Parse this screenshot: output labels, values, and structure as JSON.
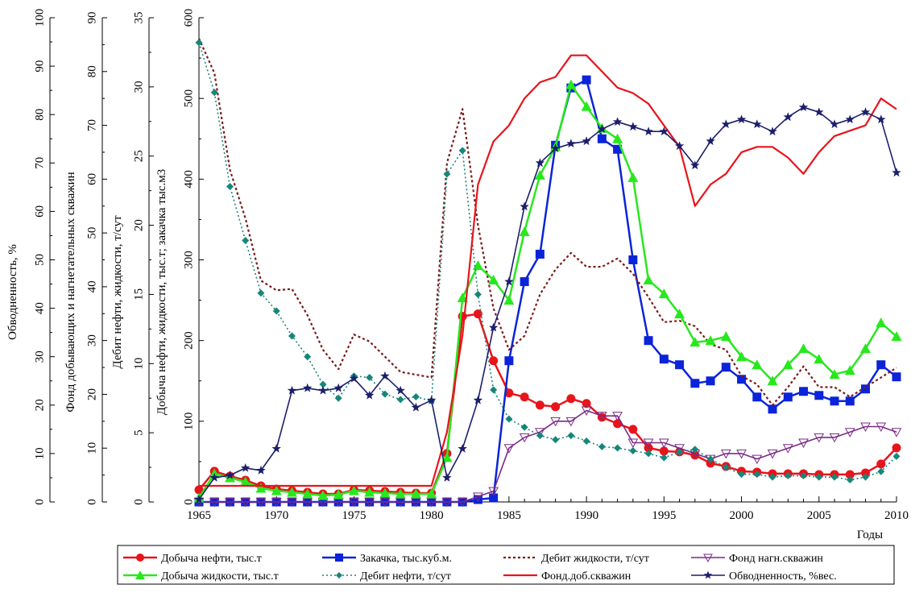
{
  "chart_data": {
    "type": "line",
    "xlabel": "Годы",
    "x_ticks": [
      "1965",
      "1970",
      "1975",
      "1980",
      "1985",
      "1990",
      "1995",
      "2000",
      "2005",
      "2010"
    ],
    "xlim": [
      1965,
      2010
    ],
    "axes": [
      {
        "id": "wc",
        "label": "Обводненность, %",
        "ylim": [
          0,
          100
        ],
        "ticks": [
          "0",
          "10",
          "20",
          "30",
          "40",
          "50",
          "60",
          "70",
          "80",
          "90",
          "100"
        ]
      },
      {
        "id": "wells",
        "label": "Фонд добывающих и нагнетательных скважин",
        "ylim": [
          0,
          90
        ],
        "ticks": [
          "0",
          "10",
          "20",
          "30",
          "40",
          "50",
          "60",
          "70",
          "80",
          "90"
        ]
      },
      {
        "id": "rate",
        "label": "Дебит нефти, жидкости, т/сут",
        "ylim": [
          0,
          35
        ],
        "ticks": [
          "0",
          "5",
          "10",
          "15",
          "20",
          "25",
          "30",
          "35"
        ]
      },
      {
        "id": "prod",
        "label": "Добыча нефти, жидкости, тыс.т; закачка тыс.м3",
        "ylim": [
          0,
          600
        ],
        "ticks": [
          "0",
          "100",
          "200",
          "300",
          "400",
          "500",
          "600"
        ]
      }
    ],
    "series": [
      {
        "name": "Добыча нефти, тыс.т",
        "axis": "prod",
        "color": "#e8141b",
        "width": 2.5,
        "dash": "",
        "marker": "circle",
        "x": [
          1965,
          1966,
          1967,
          1968,
          1969,
          1970,
          1971,
          1972,
          1973,
          1974,
          1975,
          1976,
          1977,
          1978,
          1979,
          1980,
          1981,
          1982,
          1983,
          1984,
          1985,
          1986,
          1987,
          1988,
          1989,
          1990,
          1991,
          1992,
          1993,
          1994,
          1995,
          1996,
          1997,
          1998,
          1999,
          2000,
          2001,
          2002,
          2003,
          2004,
          2005,
          2006,
          2007,
          2008,
          2009,
          2010
        ],
        "y": [
          15,
          38,
          32,
          27,
          20,
          16,
          14,
          12,
          10,
          10,
          15,
          14,
          13,
          12,
          11,
          11,
          60,
          230,
          233,
          175,
          135,
          130,
          120,
          118,
          128,
          122,
          105,
          97,
          90,
          67,
          63,
          62,
          58,
          48,
          44,
          38,
          37,
          35,
          35,
          35,
          34,
          34,
          34,
          36,
          47,
          67
        ]
      },
      {
        "name": "Закачка, тыс.куб.м.",
        "axis": "prod",
        "color": "#0b24d9",
        "width": 2.5,
        "dash": "",
        "marker": "square",
        "x": [
          1965,
          1966,
          1967,
          1968,
          1969,
          1970,
          1971,
          1972,
          1973,
          1974,
          1975,
          1976,
          1977,
          1978,
          1979,
          1980,
          1981,
          1982,
          1983,
          1984,
          1985,
          1986,
          1987,
          1988,
          1989,
          1990,
          1991,
          1992,
          1993,
          1994,
          1995,
          1996,
          1997,
          1998,
          1999,
          2000,
          2001,
          2002,
          2003,
          2004,
          2005,
          2006,
          2007,
          2008,
          2009,
          2010
        ],
        "y": [
          0,
          0,
          0,
          0,
          0,
          0,
          0,
          0,
          0,
          0,
          0,
          0,
          0,
          0,
          0,
          0,
          0,
          0,
          3,
          5,
          175,
          273,
          307,
          442,
          513,
          523,
          450,
          437,
          300,
          200,
          177,
          170,
          147,
          150,
          167,
          152,
          130,
          115,
          130,
          137,
          132,
          125,
          125,
          140,
          170,
          155
        ]
      },
      {
        "name": "Дебит жидкости, т/сут",
        "axis": "rate",
        "color": "#7b1a1a",
        "width": 2.2,
        "dash": "3,3",
        "marker": "none",
        "x": [
          1965,
          1966,
          1967,
          1968,
          1969,
          1970,
          1971,
          1972,
          1973,
          1974,
          1975,
          1976,
          1977,
          1978,
          1979,
          1980,
          1981,
          1982,
          1983,
          1984,
          1985,
          1986,
          1987,
          1988,
          1989,
          1990,
          1991,
          1992,
          1993,
          1994,
          1995,
          1996,
          1997,
          1998,
          1999,
          2000,
          2001,
          2002,
          2003,
          2004,
          2005,
          2006,
          2007,
          2008,
          2009,
          2010
        ],
        "y": [
          33.5,
          31,
          24,
          20.5,
          16,
          15.3,
          15.4,
          13.5,
          11,
          9.6,
          12.1,
          11.6,
          10.5,
          9.4,
          9.2,
          9,
          24.5,
          28.4,
          20,
          14,
          11,
          12,
          15,
          16.8,
          18,
          17,
          17,
          17.6,
          16.5,
          14.8,
          13,
          13.1,
          12.7,
          11.4,
          11,
          9.1,
          8.5,
          7,
          8.3,
          9.8,
          8.3,
          8.3,
          7.6,
          8.3,
          9,
          9.7
        ]
      },
      {
        "name": "Фонд нагн.скважин",
        "axis": "wells",
        "color": "#7a2a86",
        "width": 1.6,
        "dash": "",
        "marker": "tri-down",
        "x": [
          1965,
          1966,
          1967,
          1968,
          1969,
          1970,
          1971,
          1972,
          1973,
          1974,
          1975,
          1976,
          1977,
          1978,
          1979,
          1980,
          1981,
          1982,
          1983,
          1984,
          1985,
          1986,
          1987,
          1988,
          1989,
          1990,
          1991,
          1992,
          1993,
          1994,
          1995,
          1996,
          1997,
          1998,
          1999,
          2000,
          2001,
          2002,
          2003,
          2004,
          2005,
          2006,
          2007,
          2008,
          2009,
          2010
        ],
        "y": [
          0,
          0,
          0,
          0,
          0,
          0,
          0,
          0,
          0,
          0,
          0,
          0,
          0,
          0,
          0,
          0,
          0,
          0,
          1,
          2,
          10,
          12,
          13,
          15,
          15,
          17,
          16,
          16,
          11,
          11,
          11,
          10,
          9,
          8,
          9,
          9,
          8,
          9,
          10,
          11,
          12,
          12,
          13,
          14,
          14,
          13
        ]
      },
      {
        "name": "Добыча жидкости, тыс.т",
        "axis": "prod",
        "color": "#27e81c",
        "width": 2.5,
        "dash": "",
        "marker": "triangle",
        "x": [
          1965,
          1966,
          1967,
          1968,
          1969,
          1970,
          1971,
          1972,
          1973,
          1974,
          1975,
          1976,
          1977,
          1978,
          1979,
          1980,
          1981,
          1982,
          1983,
          1984,
          1985,
          1986,
          1987,
          1988,
          1989,
          1990,
          1991,
          1992,
          1993,
          1994,
          1995,
          1996,
          1997,
          1998,
          1999,
          2000,
          2001,
          2002,
          2003,
          2004,
          2005,
          2006,
          2007,
          2008,
          2009,
          2010
        ],
        "y": [
          5,
          35,
          30,
          25,
          17,
          14,
          12,
          10,
          8,
          9,
          14,
          12,
          11,
          10,
          10,
          10,
          55,
          253,
          293,
          275,
          250,
          335,
          405,
          440,
          517,
          490,
          463,
          450,
          402,
          275,
          258,
          233,
          198,
          200,
          205,
          180,
          170,
          150,
          170,
          190,
          177,
          158,
          163,
          190,
          222,
          205
        ]
      },
      {
        "name": "Дебит нефти, т/сут",
        "axis": "rate",
        "color": "#17867a",
        "width": 1.6,
        "dash": "2,3",
        "marker": "diamond",
        "x": [
          1965,
          1966,
          1967,
          1968,
          1969,
          1970,
          1971,
          1972,
          1973,
          1974,
          1975,
          1976,
          1977,
          1978,
          1979,
          1980,
          1981,
          1982,
          1983,
          1984,
          1985,
          1986,
          1987,
          1988,
          1989,
          1990,
          1991,
          1992,
          1993,
          1994,
          1995,
          1996,
          1997,
          1998,
          1999,
          2000,
          2001,
          2002,
          2003,
          2004,
          2005,
          2006,
          2007,
          2008,
          2009,
          2010
        ],
        "y": [
          33.2,
          29.6,
          22.8,
          18.9,
          15.1,
          13.8,
          12,
          10.5,
          8.5,
          7.5,
          9.1,
          9,
          7.8,
          7.4,
          7.6,
          7.3,
          23.7,
          25.4,
          15,
          8.1,
          6,
          5.4,
          4.8,
          4.5,
          4.8,
          4.4,
          4,
          3.9,
          3.7,
          3.5,
          3.2,
          3.6,
          3.8,
          3.1,
          2.5,
          2,
          2,
          1.8,
          1.9,
          1.9,
          1.8,
          1.8,
          1.6,
          1.8,
          2.2,
          3.3
        ]
      },
      {
        "name": "Фонд.доб.скважин",
        "axis": "wells",
        "color": "#e8141b",
        "width": 2.2,
        "dash": "",
        "marker": "none",
        "x": [
          1965,
          1966,
          1967,
          1968,
          1969,
          1970,
          1971,
          1972,
          1973,
          1974,
          1975,
          1976,
          1977,
          1978,
          1979,
          1980,
          1981,
          1982,
          1983,
          1984,
          1985,
          1986,
          1987,
          1988,
          1989,
          1990,
          1991,
          1992,
          1993,
          1994,
          1995,
          1996,
          1997,
          1998,
          1999,
          2000,
          2001,
          2002,
          2003,
          2004,
          2005,
          2006,
          2007,
          2008,
          2009,
          2010
        ],
        "y": [
          3,
          3,
          3,
          3,
          3,
          3,
          3,
          3,
          3,
          3,
          3,
          3,
          3,
          3,
          3,
          3,
          13,
          31,
          59,
          67,
          70,
          75,
          78,
          79,
          83,
          83,
          80,
          77,
          76,
          74,
          70,
          66,
          55,
          59,
          61,
          65,
          66,
          66,
          64,
          61,
          65,
          68,
          69,
          70,
          75,
          73
        ]
      },
      {
        "name": "Обводненность, %вес.",
        "axis": "wc",
        "color": "#1c1f6b",
        "width": 1.6,
        "dash": "",
        "marker": "star",
        "x": [
          1965,
          1966,
          1967,
          1968,
          1969,
          1970,
          1971,
          1972,
          1973,
          1974,
          1975,
          1976,
          1977,
          1978,
          1979,
          1980,
          1981,
          1982,
          1983,
          1984,
          1985,
          1986,
          1987,
          1988,
          1989,
          1990,
          1991,
          1992,
          1993,
          1994,
          1995,
          1996,
          1997,
          1998,
          1999,
          2000,
          2001,
          2002,
          2003,
          2004,
          2005,
          2006,
          2007,
          2008,
          2009,
          2010
        ],
        "y": [
          0.5,
          5,
          5.5,
          7,
          6.5,
          11,
          23,
          23.5,
          23,
          23.5,
          25.5,
          22,
          26,
          23,
          19.5,
          21,
          5,
          11,
          21,
          36,
          45.5,
          61,
          70,
          73,
          74,
          74.5,
          77,
          78.5,
          77.5,
          76.5,
          76.5,
          73.5,
          69.5,
          74.5,
          78,
          79,
          78,
          76.5,
          79.5,
          81.5,
          80.5,
          78,
          79,
          80.5,
          79,
          68
        ]
      }
    ],
    "legend": {
      "placement": "bottom",
      "columns": 4
    },
    "grid": false
  }
}
